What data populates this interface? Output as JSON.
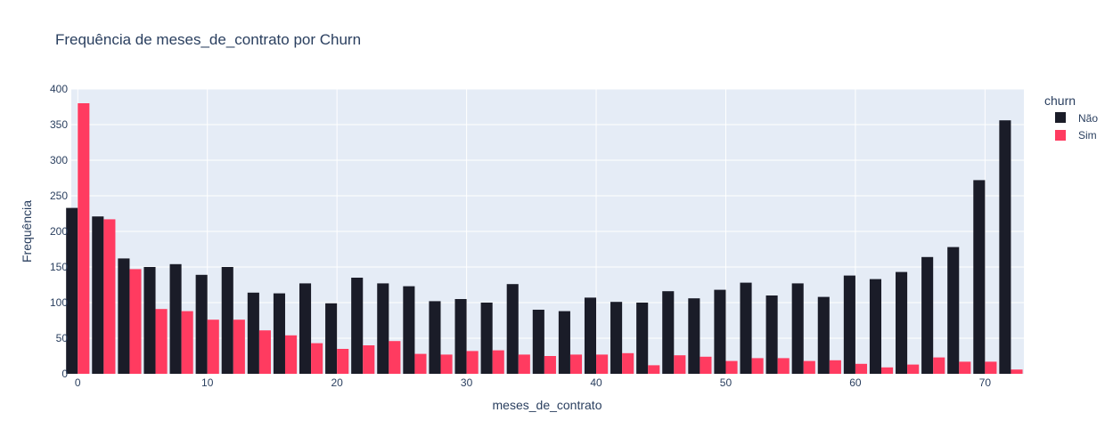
{
  "chart_data": {
    "type": "bar",
    "title": "Frequência de meses_de_contrato por Churn",
    "xlabel": "meses_de_contrato",
    "ylabel": "Frequência",
    "xlim": [
      -0.5,
      73
    ],
    "ylim": [
      0,
      400
    ],
    "bin_width": 2,
    "x": [
      0,
      2,
      4,
      6,
      8,
      10,
      12,
      14,
      16,
      18,
      20,
      22,
      24,
      26,
      28,
      30,
      32,
      34,
      36,
      38,
      40,
      42,
      44,
      46,
      48,
      50,
      52,
      54,
      56,
      58,
      60,
      62,
      64,
      66,
      68,
      70,
      72
    ],
    "x_ticks": [
      "0",
      "10",
      "20",
      "30",
      "40",
      "50",
      "60",
      "70"
    ],
    "y_ticks": [
      "0",
      "50",
      "100",
      "150",
      "200",
      "250",
      "300",
      "350",
      "400"
    ],
    "grid": true,
    "legend": {
      "title": "churn",
      "position": "right"
    },
    "series": [
      {
        "name": "Não",
        "color": "#1a1c28",
        "values": [
          233,
          221,
          162,
          150,
          154,
          139,
          150,
          114,
          113,
          127,
          99,
          135,
          127,
          123,
          102,
          105,
          100,
          126,
          90,
          88,
          107,
          101,
          100,
          116,
          106,
          118,
          128,
          110,
          127,
          108,
          138,
          133,
          143,
          164,
          178,
          272,
          356
        ]
      },
      {
        "name": "Sim",
        "color": "#ff3b60",
        "values": [
          380,
          217,
          147,
          91,
          88,
          76,
          76,
          61,
          54,
          43,
          35,
          40,
          46,
          28,
          27,
          32,
          33,
          27,
          25,
          27,
          27,
          29,
          12,
          26,
          24,
          18,
          22,
          22,
          18,
          19,
          14,
          9,
          13,
          23,
          17,
          17,
          6
        ]
      }
    ]
  }
}
